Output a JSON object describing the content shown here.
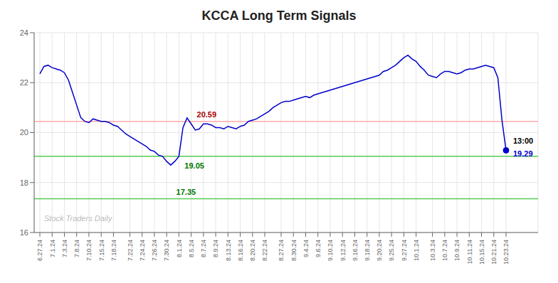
{
  "chart_data": {
    "type": "line",
    "title": "KCCA Long Term Signals",
    "categories": [
      "6.27.24",
      null,
      null,
      "7.1.24",
      null,
      null,
      "7.3.24",
      null,
      null,
      "7.8.24",
      null,
      null,
      "7.10.24",
      null,
      null,
      "7.15.24",
      null,
      null,
      "7.18.24",
      null,
      null,
      null,
      "7.22.24",
      null,
      null,
      "7.24.24",
      null,
      null,
      "7.26.24",
      null,
      null,
      "7.30.24",
      null,
      null,
      "8.1.24",
      null,
      null,
      "8.5.24",
      null,
      null,
      "8.7.24",
      null,
      null,
      "8.9.24",
      null,
      null,
      "8.13.24",
      null,
      null,
      "8.16.24",
      null,
      null,
      "8.20.24",
      null,
      null,
      "8.22.24",
      null,
      null,
      null,
      "8.27.24",
      null,
      null,
      "8.30.24",
      null,
      null,
      "9.4.24",
      null,
      null,
      "9.6.24",
      null,
      null,
      "9.10.24",
      null,
      null,
      "9.12.24",
      null,
      null,
      "9.16.24",
      null,
      null,
      "9.18.24",
      null,
      null,
      "9.20.24",
      null,
      null,
      "9.25.24",
      null,
      null,
      "9.27.24",
      null,
      null,
      "10.1.24",
      null,
      null,
      null,
      "10.3.24",
      null,
      null,
      "10.7.24",
      null,
      null,
      "10.9.24",
      null,
      null,
      "10.11.24",
      null,
      null,
      "10.15.24",
      null,
      null,
      "10.21.24",
      null,
      null,
      "10.23.24"
    ],
    "values": [
      22.35,
      22.65,
      22.7,
      22.6,
      22.55,
      22.5,
      22.4,
      22.1,
      21.6,
      21.1,
      20.6,
      20.45,
      20.4,
      20.55,
      20.5,
      20.45,
      20.45,
      20.4,
      20.3,
      20.25,
      20.1,
      19.95,
      19.85,
      19.75,
      19.65,
      19.55,
      19.45,
      19.3,
      19.25,
      19.1,
      19.05,
      18.85,
      18.7,
      18.85,
      19.05,
      20.2,
      20.59,
      20.35,
      20.1,
      20.15,
      20.35,
      20.35,
      20.3,
      20.2,
      20.2,
      20.15,
      20.25,
      20.2,
      20.15,
      20.25,
      20.3,
      20.45,
      20.5,
      20.55,
      20.65,
      20.75,
      20.85,
      21.0,
      21.1,
      21.2,
      21.25,
      21.25,
      21.3,
      21.35,
      21.4,
      21.45,
      21.4,
      21.5,
      21.55,
      21.6,
      21.65,
      21.7,
      21.75,
      21.8,
      21.85,
      21.9,
      21.95,
      22.0,
      22.05,
      22.1,
      22.15,
      22.2,
      22.25,
      22.3,
      22.45,
      22.5,
      22.6,
      22.7,
      22.85,
      23.0,
      23.1,
      22.95,
      22.85,
      22.65,
      22.5,
      22.3,
      22.25,
      22.2,
      22.35,
      22.45,
      22.45,
      22.4,
      22.35,
      22.4,
      22.5,
      22.55,
      22.55,
      22.6,
      22.65,
      22.7,
      22.65,
      22.6,
      22.2,
      20.5,
      19.29
    ],
    "color": "#0000cc",
    "ylim": [
      16,
      24
    ],
    "yticks": [
      16,
      18,
      20,
      22,
      24
    ],
    "grid": true,
    "hlines": [
      {
        "y": 20.45,
        "color": "#ffaaaa"
      },
      {
        "y": 19.05,
        "color": "#55cc55"
      },
      {
        "y": 17.35,
        "color": "#55cc55"
      }
    ],
    "annotations": [
      {
        "text": "20.59",
        "x": 37,
        "y": 20.59,
        "color": "#aa0000"
      },
      {
        "text": "19.05",
        "x": 34,
        "y": 19.05,
        "color": "#007700"
      },
      {
        "text": "17.35",
        "x": 33,
        "y": 17.58,
        "color": "#007700"
      },
      {
        "text": "13:00",
        "x": 114,
        "y": 19.29,
        "color": "#000000"
      },
      {
        "text": "19.29",
        "x": 114,
        "y": 19.29,
        "color": "#0000cc"
      }
    ],
    "watermark": {
      "text": "Stock Traders Daily",
      "color": "#bbbbbb"
    }
  }
}
